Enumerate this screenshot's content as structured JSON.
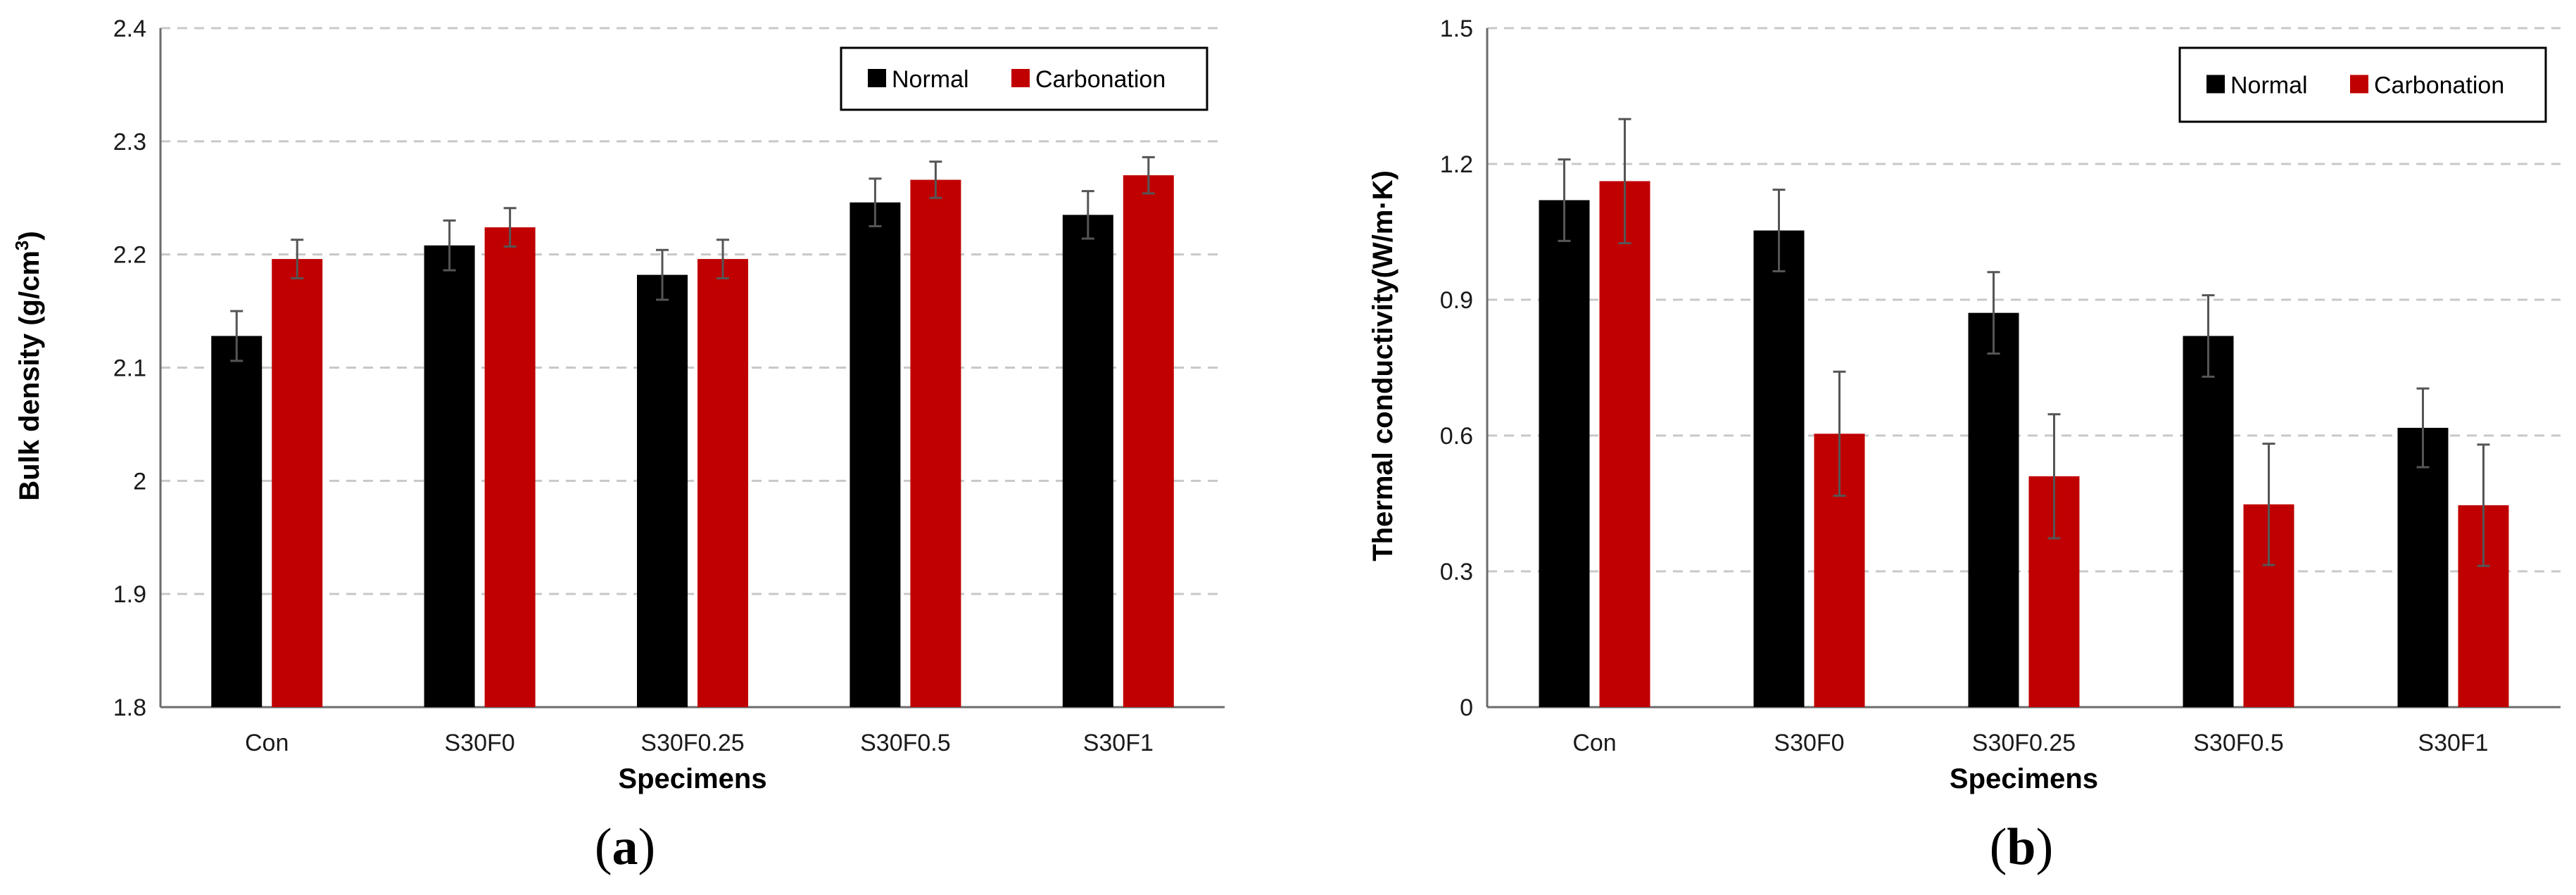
{
  "colors": {
    "normal": "#000000",
    "carbonation": "#C00000",
    "grid": "#c8c8c8",
    "error": "#555555"
  },
  "chart_data": [
    {
      "type": "bar",
      "panel_label": "a",
      "title": "",
      "xlabel": "Specimens",
      "ylabel": "Bulk density (g/cm",
      "ylabel_sup": "3",
      "ylabel_close": ")",
      "ylim": [
        1.8,
        2.4
      ],
      "yticks": [
        1.8,
        1.9,
        2.0,
        2.1,
        2.2,
        2.3,
        2.4
      ],
      "ytick_labels": [
        "1.8",
        "1.9",
        "2",
        "2.1",
        "2.2",
        "2.3",
        "2.4"
      ],
      "grid": true,
      "legend_position": "top-right",
      "categories": [
        "Con",
        "S30F0",
        "S30F0.25",
        "S30F0.5",
        "S30F1"
      ],
      "series": [
        {
          "name": "Normal",
          "values": [
            2.128,
            2.208,
            2.182,
            2.246,
            2.235
          ],
          "errors": [
            0.022,
            0.022,
            0.022,
            0.021,
            0.021
          ]
        },
        {
          "name": "Carbonation",
          "values": [
            2.196,
            2.224,
            2.196,
            2.266,
            2.27
          ],
          "errors": [
            0.017,
            0.017,
            0.017,
            0.016,
            0.016
          ]
        }
      ]
    },
    {
      "type": "bar",
      "panel_label": "b",
      "title": "",
      "xlabel": "Specimens",
      "ylabel": "Thermal conductivity(W/m·K)",
      "ylabel_sup": "",
      "ylabel_close": "",
      "ylim": [
        0,
        1.5
      ],
      "yticks": [
        0,
        0.3,
        0.6,
        0.9,
        1.2,
        1.5
      ],
      "ytick_labels": [
        "0",
        "0.3",
        "0.6",
        "0.9",
        "1.2",
        "1.5"
      ],
      "grid": true,
      "legend_position": "top-right",
      "categories": [
        "Con",
        "S30F0",
        "S30F0.25",
        "S30F0.5",
        "S30F1"
      ],
      "series": [
        {
          "name": "Normal",
          "values": [
            1.12,
            1.053,
            0.871,
            0.82,
            0.617
          ],
          "errors": [
            0.09,
            0.09,
            0.09,
            0.09,
            0.087
          ]
        },
        {
          "name": "Carbonation",
          "values": [
            1.162,
            0.604,
            0.51,
            0.448,
            0.446
          ],
          "errors": [
            0.137,
            0.137,
            0.137,
            0.134,
            0.134
          ]
        }
      ]
    }
  ]
}
